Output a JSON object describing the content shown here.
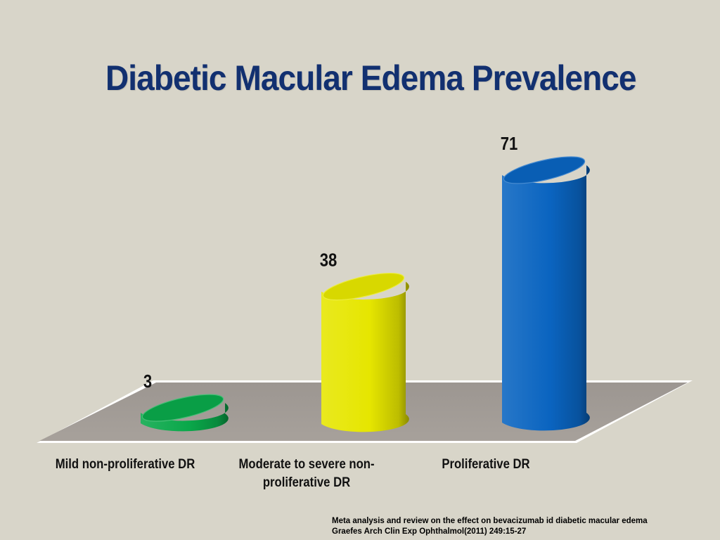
{
  "slide": {
    "title": "Diabetic Macular Edema Prevalence",
    "citation_line1": "Meta analysis  and review on the effect on bevacizumab id diabetic macular edema",
    "citation_line2": "Graefes Arch Clin Exp Ophthalmol(2011) 249:15-27"
  },
  "chart_data": {
    "type": "bar",
    "style": "3d-cylinder",
    "title": "Diabetic Macular Edema Prevalence",
    "categories": [
      [
        "Mild non-proliferative DR"
      ],
      [
        "Moderate to severe non-",
        "proliferative DR"
      ],
      [
        "Proliferative DR"
      ]
    ],
    "values": [
      3,
      38,
      71
    ],
    "colors": [
      "#0aa84a",
      "#e6e600",
      "#0a64c0"
    ],
    "ylim": [
      0,
      71
    ],
    "grid": false,
    "legend": "none"
  }
}
